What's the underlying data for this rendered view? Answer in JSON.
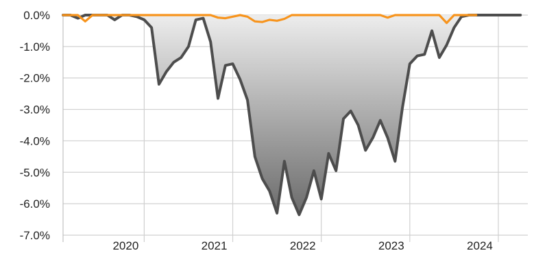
{
  "chart_data": {
    "type": "area",
    "title": "",
    "xlabel": "",
    "ylabel": "",
    "ylim": [
      -7.0,
      0.0
    ],
    "xlim": [
      "2019-02",
      "2024-05"
    ],
    "grid": true,
    "y_ticks": [
      "0.0%",
      "-1.0%",
      "-2.0%",
      "-3.0%",
      "-4.0%",
      "-5.0%",
      "-6.0%",
      "-7.0%"
    ],
    "y_tick_values": [
      0,
      -1,
      -2,
      -3,
      -4,
      -5,
      -6,
      -7
    ],
    "x_ticks": [
      "2020",
      "2021",
      "2022",
      "2023",
      "2024"
    ],
    "x_tick_values": [
      "2020-01",
      "2021-01",
      "2022-01",
      "2023-01",
      "2024-01"
    ],
    "series": [
      {
        "color": "#4d4d4d",
        "fill": true,
        "points": [
          [
            "2019-02",
            0.0
          ],
          [
            "2019-03",
            0.0
          ],
          [
            "2019-04",
            -0.1
          ],
          [
            "2019-05",
            0.0
          ],
          [
            "2019-06",
            0.0
          ],
          [
            "2019-07",
            0.0
          ],
          [
            "2019-08",
            0.0
          ],
          [
            "2019-09",
            -0.15
          ],
          [
            "2019-10",
            0.0
          ],
          [
            "2019-11",
            0.0
          ],
          [
            "2019-12",
            -0.05
          ],
          [
            "2020-01",
            -0.15
          ],
          [
            "2020-02",
            -0.4
          ],
          [
            "2020-03",
            -2.2
          ],
          [
            "2020-04",
            -1.8
          ],
          [
            "2020-05",
            -1.5
          ],
          [
            "2020-06",
            -1.35
          ],
          [
            "2020-07",
            -1.0
          ],
          [
            "2020-08",
            -0.15
          ],
          [
            "2020-09",
            -0.1
          ],
          [
            "2020-10",
            -0.85
          ],
          [
            "2020-11",
            -2.65
          ],
          [
            "2020-12",
            -1.6
          ],
          [
            "2021-01",
            -1.55
          ],
          [
            "2021-02",
            -2.05
          ],
          [
            "2021-03",
            -2.7
          ],
          [
            "2021-04",
            -4.5
          ],
          [
            "2021-05",
            -5.2
          ],
          [
            "2021-06",
            -5.6
          ],
          [
            "2021-07",
            -6.3
          ],
          [
            "2021-08",
            -4.65
          ],
          [
            "2021-09",
            -5.8
          ],
          [
            "2021-10",
            -6.35
          ],
          [
            "2021-11",
            -5.8
          ],
          [
            "2021-12",
            -4.95
          ],
          [
            "2022-01",
            -5.85
          ],
          [
            "2022-02",
            -4.4
          ],
          [
            "2022-03",
            -4.95
          ],
          [
            "2022-04",
            -3.3
          ],
          [
            "2022-05",
            -3.05
          ],
          [
            "2022-06",
            -3.5
          ],
          [
            "2022-07",
            -4.3
          ],
          [
            "2022-08",
            -3.9
          ],
          [
            "2022-09",
            -3.35
          ],
          [
            "2022-10",
            -3.9
          ],
          [
            "2022-11",
            -4.65
          ],
          [
            "2022-12",
            -2.95
          ],
          [
            "2023-01",
            -1.55
          ],
          [
            "2023-02",
            -1.3
          ],
          [
            "2023-03",
            -1.25
          ],
          [
            "2023-04",
            -0.5
          ],
          [
            "2023-05",
            -1.35
          ],
          [
            "2023-06",
            -0.95
          ],
          [
            "2023-07",
            -0.4
          ],
          [
            "2023-08",
            -0.05
          ],
          [
            "2023-09",
            0.0
          ],
          [
            "2023-10",
            0.0
          ],
          [
            "2023-11",
            0.0
          ],
          [
            "2023-12",
            0.0
          ],
          [
            "2024-01",
            0.0
          ],
          [
            "2024-02",
            0.0
          ],
          [
            "2024-03",
            0.0
          ],
          [
            "2024-04",
            0.0
          ]
        ]
      },
      {
        "color": "#f7941d",
        "fill": false,
        "points": [
          [
            "2019-02",
            0.0
          ],
          [
            "2019-03",
            0.0
          ],
          [
            "2019-04",
            0.0
          ],
          [
            "2019-05",
            -0.2
          ],
          [
            "2019-06",
            0.0
          ],
          [
            "2019-07",
            0.0
          ],
          [
            "2019-08",
            0.0
          ],
          [
            "2019-09",
            0.0
          ],
          [
            "2019-10",
            0.0
          ],
          [
            "2019-11",
            0.0
          ],
          [
            "2019-12",
            0.0
          ],
          [
            "2020-01",
            0.0
          ],
          [
            "2020-02",
            0.0
          ],
          [
            "2020-03",
            0.0
          ],
          [
            "2020-04",
            0.0
          ],
          [
            "2020-05",
            0.0
          ],
          [
            "2020-06",
            0.0
          ],
          [
            "2020-07",
            0.0
          ],
          [
            "2020-08",
            0.0
          ],
          [
            "2020-09",
            0.0
          ],
          [
            "2020-10",
            0.0
          ],
          [
            "2020-11",
            -0.08
          ],
          [
            "2020-12",
            -0.1
          ],
          [
            "2021-01",
            -0.05
          ],
          [
            "2021-02",
            0.0
          ],
          [
            "2021-03",
            -0.05
          ],
          [
            "2021-04",
            -0.2
          ],
          [
            "2021-05",
            -0.22
          ],
          [
            "2021-06",
            -0.15
          ],
          [
            "2021-07",
            -0.18
          ],
          [
            "2021-08",
            -0.12
          ],
          [
            "2021-09",
            0.0
          ],
          [
            "2021-10",
            0.0
          ],
          [
            "2021-11",
            0.0
          ],
          [
            "2021-12",
            0.0
          ],
          [
            "2022-01",
            0.0
          ],
          [
            "2022-02",
            0.0
          ],
          [
            "2022-03",
            0.0
          ],
          [
            "2022-04",
            0.0
          ],
          [
            "2022-05",
            0.0
          ],
          [
            "2022-06",
            0.0
          ],
          [
            "2022-07",
            0.0
          ],
          [
            "2022-08",
            0.0
          ],
          [
            "2022-09",
            0.0
          ],
          [
            "2022-10",
            -0.08
          ],
          [
            "2022-11",
            0.0
          ],
          [
            "2022-12",
            0.0
          ],
          [
            "2023-01",
            0.0
          ],
          [
            "2023-02",
            0.0
          ],
          [
            "2023-03",
            0.0
          ],
          [
            "2023-04",
            0.0
          ],
          [
            "2023-05",
            0.0
          ],
          [
            "2023-06",
            -0.25
          ],
          [
            "2023-07",
            0.0
          ],
          [
            "2023-08",
            0.0
          ],
          [
            "2023-09",
            0.0
          ],
          [
            "2023-10",
            0.0
          ]
        ]
      }
    ],
    "colors": {
      "grid": "#d0d0d0",
      "axis": "#c0c0c0",
      "fill_top": "#ededed",
      "fill_bottom": "#6b6b6b"
    }
  }
}
